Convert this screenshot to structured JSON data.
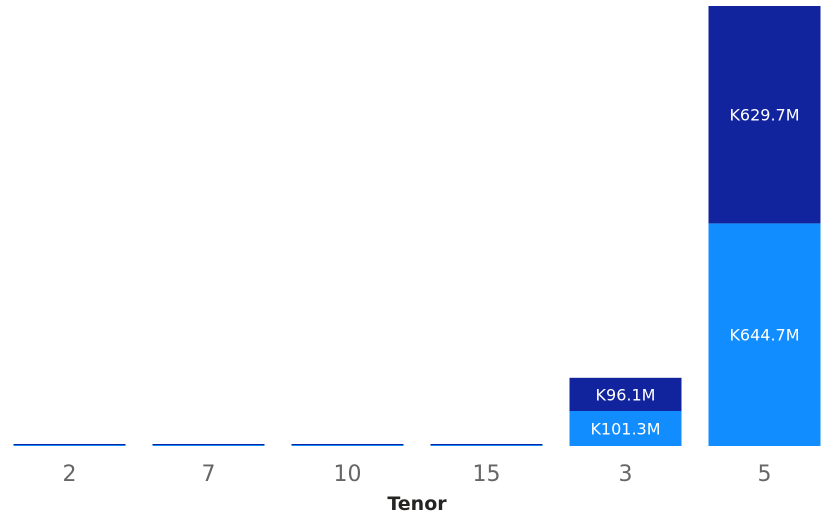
{
  "chart_data": {
    "type": "bar",
    "stacked": true,
    "categories": [
      "2",
      "7",
      "10",
      "15",
      "3",
      "5"
    ],
    "xlabel": "Tenor",
    "ylabel": "",
    "ylim": [
      0,
      1274.4
    ],
    "grid": false,
    "series": [
      {
        "color": "#118dff",
        "values": [
          1.0,
          1.0,
          1.0,
          1.5,
          101.3,
          644.7
        ],
        "labels": [
          "",
          "",
          "",
          "",
          "K101.3M",
          "K644.7M"
        ]
      },
      {
        "color": "#12239e",
        "values": [
          1.0,
          1.0,
          1.2,
          1.5,
          96.1,
          629.7
        ],
        "labels": [
          "",
          "",
          "",
          "",
          "K96.1M",
          "K629.7M"
        ]
      }
    ]
  }
}
